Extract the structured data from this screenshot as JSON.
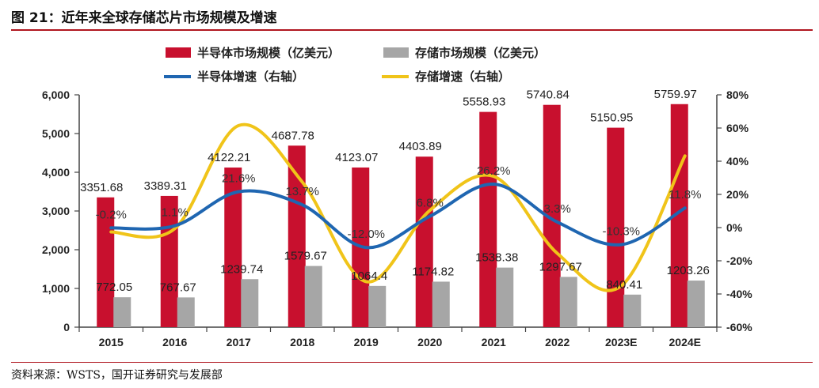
{
  "header": {
    "title": "图 21：近年来全球存储芯片市场规模及增速"
  },
  "footer": {
    "source": "资料来源：WSTS，国开证券研究与发展部"
  },
  "chart_data": {
    "type": "bar",
    "title": "",
    "categories": [
      "2015",
      "2016",
      "2017",
      "2018",
      "2019",
      "2020",
      "2021",
      "2022",
      "2023E",
      "2024E"
    ],
    "series": [
      {
        "name": "半导体市场规模（亿美元）",
        "kind": "bar",
        "axis": "left",
        "color": "#c8102e",
        "values": [
          3351.68,
          3389.31,
          4122.21,
          4687.78,
          4123.07,
          4403.89,
          5558.93,
          5740.84,
          5150.95,
          5759.97
        ],
        "labels": [
          "3351.68",
          "3389.31",
          "4122.21",
          "4687.78",
          "4123.07",
          "4403.89",
          "5558.93",
          "5740.84",
          "5150.95",
          "5759.97"
        ]
      },
      {
        "name": "存储市场规模（亿美元）",
        "kind": "bar",
        "axis": "left",
        "color": "#a6a6a6",
        "values": [
          772.05,
          767.67,
          1239.74,
          1579.67,
          1064.4,
          1174.82,
          1538.38,
          1297.67,
          840.41,
          1203.26
        ],
        "labels": [
          "772.05",
          "767.67",
          "1239.74",
          "1579.67",
          "1064.4",
          "1174.82",
          "1538.38",
          "1297.67",
          "840.41",
          "1203.26"
        ]
      },
      {
        "name": "半导体增速（右轴）",
        "kind": "line",
        "axis": "right",
        "color": "#1f66b1",
        "values": [
          -0.2,
          1.1,
          21.6,
          13.7,
          -12.0,
          6.8,
          26.2,
          3.3,
          -10.3,
          11.8
        ],
        "labels": [
          "-0.2%",
          "1.1%",
          "21.6%",
          "13.7%",
          "-12.0%",
          "6.8%",
          "26.2%",
          "3.3%",
          "-10.3%",
          "11.8%"
        ]
      },
      {
        "name": "存储增速（右轴）",
        "kind": "line",
        "axis": "right",
        "color": "#f0c419",
        "values": [
          -2.6,
          -0.6,
          61.5,
          27.4,
          -32.6,
          10.4,
          30.9,
          -15.6,
          -35.2,
          43.2
        ],
        "labels": []
      }
    ],
    "ylim_left": [
      0,
      6000
    ],
    "yticks_left": [
      0,
      1000,
      2000,
      3000,
      4000,
      5000,
      6000
    ],
    "yticklabels_left": [
      "0",
      "1,000",
      "2,000",
      "3,000",
      "4,000",
      "5,000",
      "6,000"
    ],
    "ylim_right": [
      -60,
      80
    ],
    "yticks_right": [
      -60,
      -40,
      -20,
      0,
      20,
      40,
      60,
      80
    ],
    "yticklabels_right": [
      "-60%",
      "-40%",
      "-20%",
      "0%",
      "20%",
      "40%",
      "60%",
      "80%"
    ],
    "legend_position": "top"
  }
}
